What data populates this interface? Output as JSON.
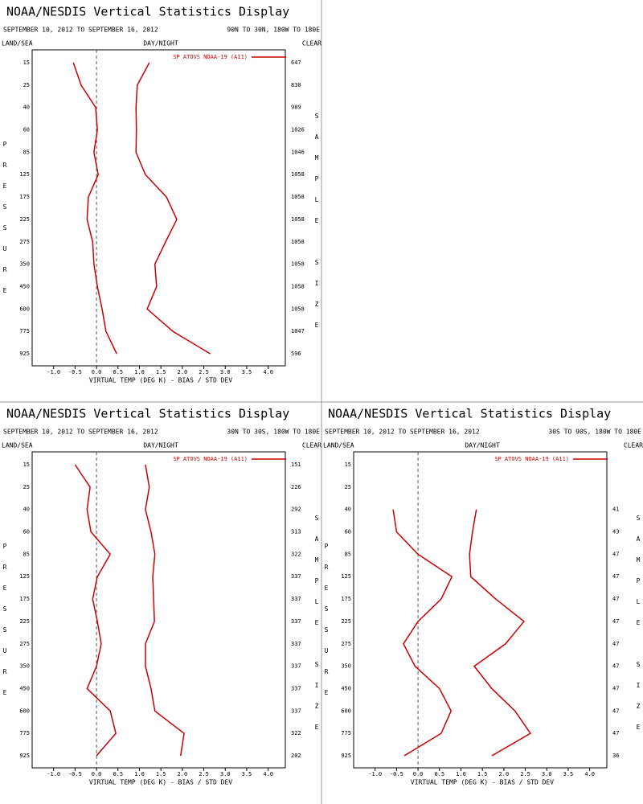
{
  "chart_data": [
    {
      "type": "line",
      "title": "NOAA/NESDIS Vertical Statistics Display",
      "subtitle": "SEPTEMBER 10, 2012 TO SEPTEMBER 16, 2012",
      "region": "90N TO 30N, 180W TO 180E",
      "top_left_label": "LAND/SEA",
      "top_center_label": "DAY/NIGHT",
      "top_right_label": "CLEAR",
      "y_label": "PRESSURE",
      "y2_label": "SAMPLE SIZE",
      "x_label": "VIRTUAL TEMP (DEG K) - BIAS / STD DEV",
      "categories": [
        15,
        25,
        40,
        60,
        85,
        125,
        175,
        225,
        275,
        350,
        450,
        600,
        775,
        925
      ],
      "sample_size": [
        647,
        830,
        989,
        1026,
        1046,
        1058,
        1058,
        1058,
        1058,
        1058,
        1058,
        1058,
        1047,
        596
      ],
      "series": [
        {
          "name": "SP ATOVS NOAA-19 (A11)",
          "color": "#cc0000",
          "bias": [
            -0.54,
            -0.36,
            -0.02,
            0.02,
            -0.06,
            0.04,
            -0.19,
            -0.22,
            -0.09,
            -0.06,
            0.02,
            0.13,
            0.22,
            0.47
          ],
          "std_dev": [
            1.23,
            0.95,
            0.92,
            0.93,
            0.92,
            1.14,
            1.63,
            1.87,
            1.61,
            1.36,
            1.4,
            1.18,
            1.78,
            2.65
          ]
        }
      ],
      "xlim": [
        -1.5,
        4.4
      ],
      "xticks": [
        {
          "value": -1,
          "label": "-1.0"
        },
        -0.5,
        {
          "value": 0,
          "label": "0.0"
        },
        0.5,
        {
          "value": 1,
          "label": "1.0"
        },
        1.5,
        {
          "value": 2,
          "label": "2.0"
        },
        2.5,
        {
          "value": 3,
          "label": "3.0"
        },
        3.5,
        {
          "value": 4,
          "label": "4.0"
        }
      ]
    },
    {
      "type": "line",
      "title": "NOAA/NESDIS Vertical Statistics Display",
      "subtitle": "SEPTEMBER 10, 2012 TO SEPTEMBER 16, 2012",
      "region": "30N TO 30S, 180W TO 180E",
      "top_left_label": "LAND/SEA",
      "top_center_label": "DAY/NIGHT",
      "top_right_label": "CLEAR",
      "y_label": "PRESSURE",
      "y2_label": "SAMPLE SIZE",
      "x_label": "VIRTUAL TEMP (DEG K) - BIAS / STD DEV",
      "categories": [
        15,
        25,
        40,
        60,
        85,
        125,
        175,
        225,
        275,
        350,
        450,
        600,
        775,
        925
      ],
      "sample_size": [
        151,
        226,
        292,
        313,
        322,
        337,
        337,
        337,
        337,
        337,
        337,
        337,
        322,
        202
      ],
      "series": [
        {
          "name": "SP ATOVS NOAA-19 (A11)",
          "color": "#cc0000",
          "bias": [
            -0.5,
            -0.15,
            -0.22,
            -0.13,
            0.32,
            0.02,
            -0.09,
            0.02,
            0.11,
            0,
            -0.22,
            0.32,
            0.45,
            0
          ],
          "std_dev": [
            1.14,
            1.23,
            1.14,
            1.27,
            1.36,
            1.31,
            1.33,
            1.35,
            1.14,
            1.14,
            1.27,
            1.36,
            2.04,
            1.96
          ]
        }
      ],
      "xlim": [
        -1.5,
        4.4
      ],
      "xticks": [
        {
          "value": -1,
          "label": "-1.0"
        },
        -0.5,
        {
          "value": 0,
          "label": "0.0"
        },
        0.5,
        {
          "value": 1,
          "label": "1.0"
        },
        1.5,
        {
          "value": 2,
          "label": "2.0"
        },
        2.5,
        {
          "value": 3,
          "label": "3.0"
        },
        3.5,
        {
          "value": 4,
          "label": "4.0"
        }
      ]
    },
    {
      "type": "line",
      "title": "NOAA/NESDIS Vertical Statistics Display",
      "subtitle": "SEPTEMBER 10, 2012 TO SEPTEMBER 16, 2012",
      "region": "30S TO 90S, 180W TO 180E",
      "top_left_label": "LAND/SEA",
      "top_center_label": "DAY/NIGHT",
      "top_right_label": "CLEAR",
      "y_label": "PRESSURE",
      "y2_label": "SAMPLE SIZE",
      "x_label": "VIRTUAL TEMP (DEG K) - BIAS / STD DEV",
      "categories": [
        15,
        25,
        40,
        60,
        85,
        125,
        175,
        225,
        275,
        350,
        450,
        600,
        775,
        925
      ],
      "sample_size": [
        null,
        null,
        41,
        43,
        47,
        47,
        47,
        47,
        47,
        47,
        47,
        47,
        47,
        36
      ],
      "series": [
        {
          "name": "SP ATOVS NOAA-19 (A11)",
          "color": "#cc0000",
          "bias": [
            null,
            null,
            -0.58,
            -0.5,
            0,
            0.79,
            0.54,
            0,
            -0.34,
            -0.07,
            0.5,
            0.77,
            0.54,
            -0.32
          ],
          "std_dev": [
            null,
            null,
            1.36,
            1.27,
            1.2,
            1.23,
            1.81,
            2.47,
            2.04,
            1.31,
            1.72,
            2.26,
            2.62,
            1.72
          ]
        }
      ],
      "xlim": [
        -1.5,
        4.4
      ],
      "xticks": [
        {
          "value": -1,
          "label": "-1.0"
        },
        -0.5,
        {
          "value": 0,
          "label": "0.0"
        },
        0.5,
        {
          "value": 1,
          "label": "1.0"
        },
        1.5,
        {
          "value": 2,
          "label": "2.0"
        },
        2.5,
        {
          "value": 3,
          "label": "3.0"
        },
        3.5,
        {
          "value": 4,
          "label": "4.0"
        }
      ]
    }
  ]
}
